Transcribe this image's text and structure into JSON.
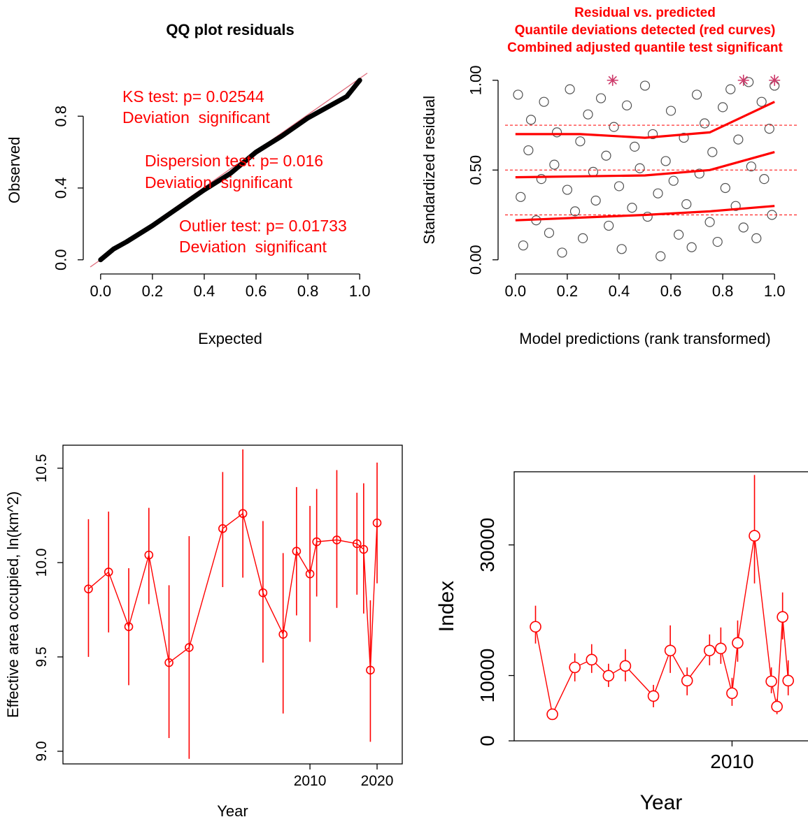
{
  "chart_data": [
    {
      "type": "qq",
      "title": "QQ plot residuals",
      "x_label": "Expected",
      "y_label": "Observed",
      "x": [
        0,
        0.05,
        0.1,
        0.2,
        0.3,
        0.4,
        0.5,
        0.6,
        0.7,
        0.8,
        0.9,
        0.95,
        1.0
      ],
      "values": [
        0,
        0.06,
        0.1,
        0.19,
        0.29,
        0.39,
        0.48,
        0.6,
        0.69,
        0.79,
        0.87,
        0.91,
        1.0
      ],
      "color": "#000000",
      "reference_color": "#e06c7c",
      "annotations": [
        "KS test: p= 0.02544",
        "Deviation  significant",
        "Dispersion test: p= 0.016",
        "Deviation  significant",
        "Outlier test: p= 0.01733",
        "Deviation  significant"
      ],
      "annotation_color": "#ff0000",
      "xlim": [
        -0.04,
        1.04
      ],
      "ylim": [
        -0.04,
        1.04
      ],
      "xticks": [
        {
          "value": 0,
          "label": "0.0"
        },
        0.2,
        0.4,
        0.6,
        0.8,
        {
          "value": 1,
          "label": "1.0"
        }
      ],
      "yticks": [
        {
          "value": 0,
          "label": "0.0"
        },
        0.4,
        0.8
      ]
    },
    {
      "type": "scatter",
      "title": [
        "Residual vs. predicted",
        "Quantile deviations detected (red curves)",
        "Combined adjusted quantile test significant"
      ],
      "title_color": "#ff0000",
      "x_label": "Model predictions (rank transformed)",
      "y_label": "Standardized residual",
      "x": [
        0.01,
        0.02,
        0.03,
        0.05,
        0.06,
        0.08,
        0.1,
        0.11,
        0.13,
        0.15,
        0.16,
        0.18,
        0.2,
        0.21,
        0.23,
        0.25,
        0.26,
        0.28,
        0.3,
        0.31,
        0.33,
        0.35,
        0.36,
        0.38,
        0.4,
        0.41,
        0.43,
        0.45,
        0.46,
        0.48,
        0.5,
        0.51,
        0.53,
        0.55,
        0.56,
        0.58,
        0.6,
        0.61,
        0.63,
        0.65,
        0.66,
        0.68,
        0.7,
        0.71,
        0.73,
        0.75,
        0.76,
        0.78,
        0.8,
        0.81,
        0.83,
        0.85,
        0.86,
        0.88,
        0.9,
        0.91,
        0.93,
        0.95,
        0.96,
        0.98,
        1.0,
        0.99
      ],
      "values": [
        0.92,
        0.35,
        0.08,
        0.61,
        0.78,
        0.22,
        0.45,
        0.88,
        0.15,
        0.53,
        0.71,
        0.04,
        0.39,
        0.95,
        0.27,
        0.66,
        0.12,
        0.81,
        0.49,
        0.33,
        0.9,
        0.58,
        0.19,
        0.74,
        0.41,
        0.06,
        0.86,
        0.29,
        0.63,
        0.51,
        0.97,
        0.24,
        0.7,
        0.37,
        0.02,
        0.55,
        0.83,
        0.44,
        0.14,
        0.68,
        0.31,
        0.07,
        0.92,
        0.48,
        0.76,
        0.21,
        0.6,
        0.1,
        0.85,
        0.4,
        0.95,
        0.3,
        0.67,
        0.18,
        0.99,
        0.52,
        0.12,
        0.88,
        0.45,
        0.73,
        0.97,
        0.25
      ],
      "color": "#333333",
      "quantile_lines": [
        0.25,
        0.5,
        0.75
      ],
      "quantile_curves": [
        {
          "x": [
            0,
            0.25,
            0.5,
            0.75,
            1
          ],
          "values": [
            0.22,
            0.235,
            0.25,
            0.27,
            0.3
          ]
        },
        {
          "x": [
            0,
            0.25,
            0.5,
            0.75,
            1
          ],
          "values": [
            0.46,
            0.465,
            0.47,
            0.5,
            0.6
          ]
        },
        {
          "x": [
            0,
            0.25,
            0.5,
            0.75,
            1
          ],
          "values": [
            0.7,
            0.7,
            0.68,
            0.71,
            0.88
          ]
        }
      ],
      "curve_color": "#ff0000",
      "outliers": {
        "x": [
          0.375,
          0.88,
          1.0
        ],
        "values": [
          1,
          1,
          1
        ],
        "color": "#cd3a6a"
      },
      "xlim": [
        -0.04,
        1.04
      ],
      "ylim": [
        -0.04,
        1.04
      ],
      "xticks": [
        {
          "value": 0,
          "label": "0.0"
        },
        0.2,
        0.4,
        0.6,
        0.8,
        {
          "value": 1,
          "label": "1.0"
        }
      ],
      "yticks": [
        {
          "value": 0,
          "label": "0.00"
        },
        {
          "value": 0.5,
          "label": "0.50"
        },
        {
          "value": 1,
          "label": "1.00"
        }
      ]
    },
    {
      "type": "errorbar_line",
      "x_label": "Year",
      "y_label": "Effective area occupied, ln(km^2)",
      "x": [
        1977,
        1980,
        1983,
        1986,
        1989,
        1992,
        1997,
        2000,
        2003,
        2006,
        2008,
        2010,
        2011,
        2014,
        2017,
        2018,
        2019,
        2020
      ],
      "values": [
        9.86,
        9.95,
        9.66,
        10.04,
        9.47,
        9.55,
        10.18,
        10.26,
        9.84,
        9.62,
        10.06,
        9.94,
        10.11,
        10.12,
        10.1,
        10.07,
        9.43,
        10.21
      ],
      "lower": [
        9.5,
        9.63,
        9.35,
        9.78,
        9.07,
        8.96,
        9.87,
        9.92,
        9.47,
        9.2,
        9.72,
        9.58,
        9.82,
        9.76,
        9.83,
        9.73,
        9.05,
        9.89
      ],
      "upper": [
        10.23,
        10.27,
        9.97,
        10.29,
        9.88,
        10.14,
        10.48,
        10.6,
        10.22,
        10.05,
        10.4,
        10.3,
        10.39,
        10.49,
        10.37,
        10.42,
        9.8,
        10.53
      ],
      "color": "#ff0000",
      "xlim": [
        1973.2,
        2023.75
      ],
      "ylim": [
        8.933,
        10.622
      ],
      "xticks": [
        2010,
        2020
      ],
      "yticks": [
        {
          "value": 9,
          "label": "9.0"
        },
        9.5,
        {
          "value": 10,
          "label": "10.0"
        },
        10.5
      ]
    },
    {
      "type": "errorbar_line",
      "x_label": "Year",
      "y_label": "Index",
      "x": [
        1992.5,
        1994,
        1996,
        1997.5,
        1999,
        2000.5,
        2003,
        2004.5,
        2006,
        2008,
        2009,
        2010,
        2010.5,
        2012,
        2013.5,
        2014,
        2014.5,
        2015
      ],
      "values": [
        17470,
        4070,
        11250,
        12430,
        9970,
        11470,
        6860,
        13830,
        9220,
        13830,
        14150,
        7290,
        15000,
        31400,
        9110,
        5250,
        18970,
        9220
      ],
      "lower": [
        14900,
        3500,
        9100,
        10400,
        8250,
        9110,
        5140,
        10400,
        6970,
        11570,
        11790,
        5360,
        12110,
        24100,
        7290,
        4070,
        15540,
        6970
      ],
      "upper": [
        20690,
        4700,
        13400,
        14800,
        11800,
        14040,
        8570,
        17680,
        11250,
        16290,
        17360,
        9650,
        18430,
        40700,
        11250,
        6430,
        22720,
        12330
      ],
      "color": "#ff0000",
      "xlim": [
        1990.6,
        2017.2
      ],
      "ylim": [
        0,
        41200
      ],
      "xticks": [
        2010
      ],
      "yticks": [
        0,
        10000,
        30000
      ]
    }
  ]
}
